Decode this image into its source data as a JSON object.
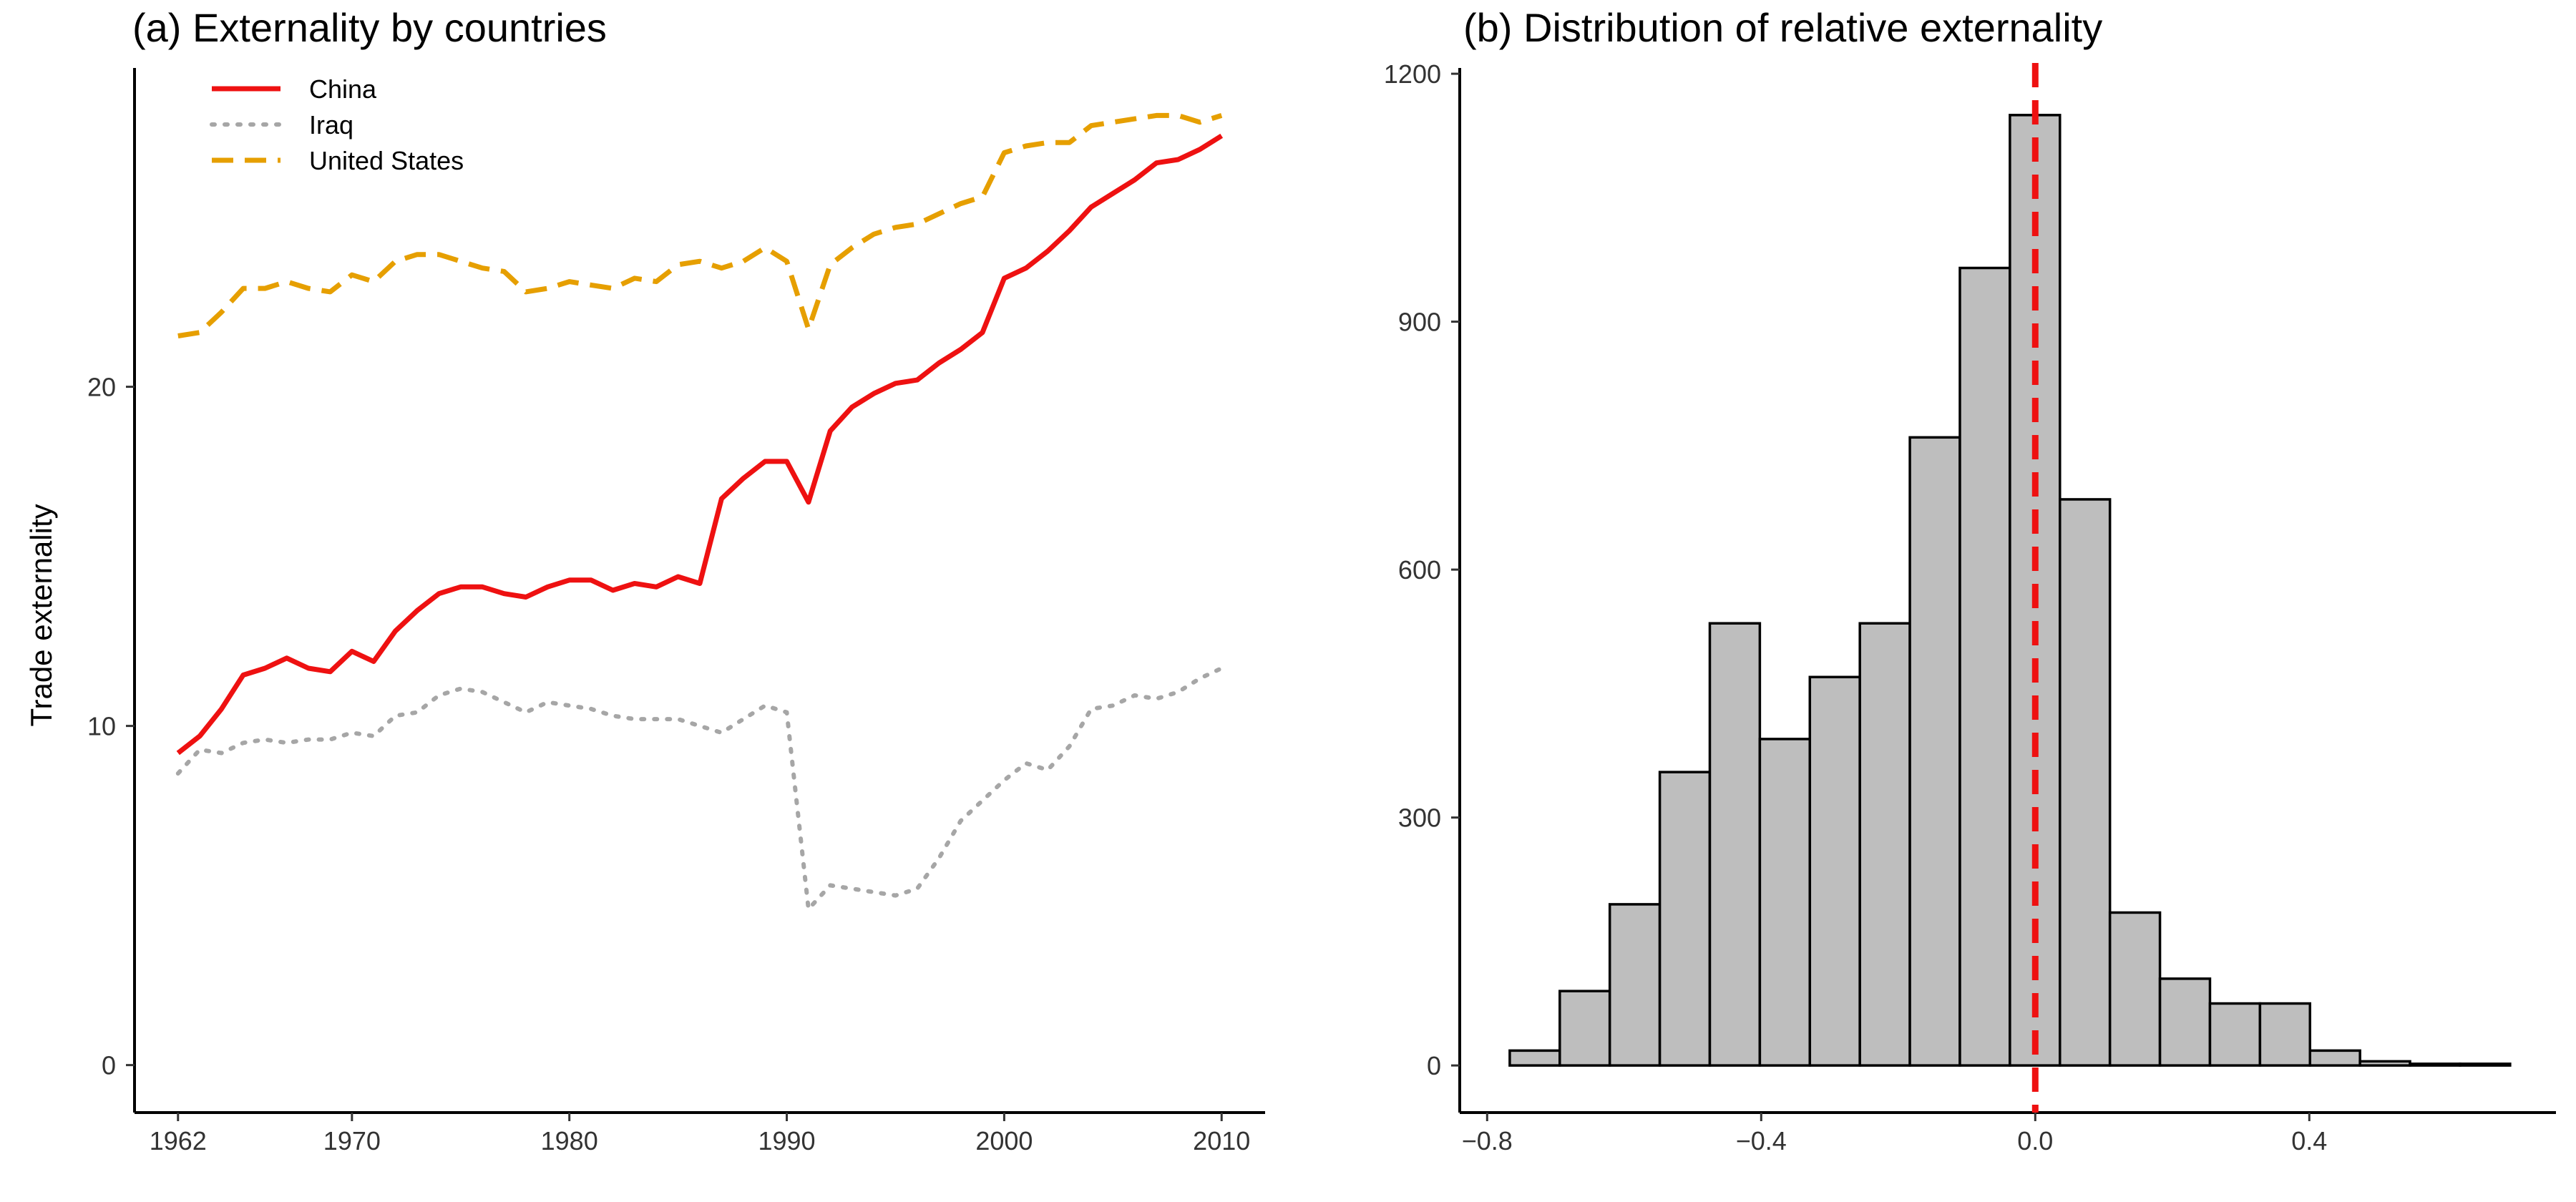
{
  "chart_data": [
    {
      "type": "line",
      "title": "(a) Externality by countries",
      "xlabel": "",
      "ylabel": "Trade externality",
      "xlim": [
        1960,
        2012
      ],
      "ylim": [
        -1.4,
        29.4
      ],
      "x_ticks": [
        1962,
        1970,
        1980,
        1990,
        2000,
        2010
      ],
      "y_ticks": [
        0,
        10,
        20
      ],
      "legend_position": "top-left",
      "series": [
        {
          "name": "China",
          "color": "#ee1111",
          "dash": "solid",
          "x": [
            1962,
            1963,
            1964,
            1965,
            1966,
            1967,
            1968,
            1969,
            1970,
            1971,
            1972,
            1973,
            1974,
            1975,
            1976,
            1977,
            1978,
            1979,
            1980,
            1981,
            1982,
            1983,
            1984,
            1985,
            1986,
            1987,
            1988,
            1989,
            1990,
            1991,
            1992,
            1993,
            1994,
            1995,
            1996,
            1997,
            1998,
            1999,
            2000,
            2001,
            2002,
            2003,
            2004,
            2005,
            2006,
            2007,
            2008,
            2009,
            2010
          ],
          "values": [
            9.2,
            9.7,
            10.5,
            11.5,
            11.7,
            12.0,
            11.7,
            11.6,
            12.2,
            11.9,
            12.8,
            13.4,
            13.9,
            14.1,
            14.1,
            13.9,
            13.8,
            14.1,
            14.3,
            14.3,
            14.0,
            14.2,
            14.1,
            14.4,
            14.2,
            16.7,
            17.3,
            17.8,
            17.8,
            16.6,
            18.7,
            19.4,
            19.8,
            20.1,
            20.2,
            20.7,
            21.1,
            21.6,
            23.2,
            23.5,
            24.0,
            24.6,
            25.3,
            25.7,
            26.1,
            26.6,
            26.7,
            27.0,
            27.4
          ]
        },
        {
          "name": "Iraq",
          "color": "#a6a6a6",
          "dash": "dotted",
          "x": [
            1962,
            1963,
            1964,
            1965,
            1966,
            1967,
            1968,
            1969,
            1970,
            1971,
            1972,
            1973,
            1974,
            1975,
            1976,
            1977,
            1978,
            1979,
            1980,
            1981,
            1982,
            1983,
            1984,
            1985,
            1986,
            1987,
            1988,
            1989,
            1990,
            1991,
            1992,
            1993,
            1994,
            1995,
            1996,
            1997,
            1998,
            1999,
            2000,
            2001,
            2002,
            2003,
            2004,
            2005,
            2006,
            2007,
            2008,
            2009,
            2010
          ],
          "values": [
            8.6,
            9.3,
            9.2,
            9.5,
            9.6,
            9.5,
            9.6,
            9.6,
            9.8,
            9.7,
            10.3,
            10.4,
            10.9,
            11.1,
            11.0,
            10.7,
            10.4,
            10.7,
            10.6,
            10.5,
            10.3,
            10.2,
            10.2,
            10.2,
            10.0,
            9.8,
            10.2,
            10.6,
            10.4,
            4.6,
            5.3,
            5.2,
            5.1,
            5.0,
            5.2,
            6.1,
            7.2,
            7.8,
            8.4,
            8.9,
            8.7,
            9.4,
            10.5,
            10.6,
            10.9,
            10.8,
            11.0,
            11.4,
            11.7
          ]
        },
        {
          "name": "United States",
          "color": "#e69f00",
          "dash": "dashed",
          "x": [
            1962,
            1963,
            1964,
            1965,
            1966,
            1967,
            1968,
            1969,
            1970,
            1971,
            1972,
            1973,
            1974,
            1975,
            1976,
            1977,
            1978,
            1979,
            1980,
            1981,
            1982,
            1983,
            1984,
            1985,
            1986,
            1987,
            1988,
            1989,
            1990,
            1991,
            1992,
            1993,
            1994,
            1995,
            1996,
            1997,
            1998,
            1999,
            2000,
            2001,
            2002,
            2003,
            2004,
            2005,
            2006,
            2007,
            2008,
            2009,
            2010
          ],
          "values": [
            21.5,
            21.6,
            22.2,
            22.9,
            22.9,
            23.1,
            22.9,
            22.8,
            23.3,
            23.1,
            23.7,
            23.9,
            23.9,
            23.7,
            23.5,
            23.4,
            22.8,
            22.9,
            23.1,
            23.0,
            22.9,
            23.2,
            23.1,
            23.6,
            23.7,
            23.5,
            23.7,
            24.1,
            23.7,
            21.7,
            23.6,
            24.1,
            24.5,
            24.7,
            24.8,
            25.1,
            25.4,
            25.6,
            26.9,
            27.1,
            27.2,
            27.2,
            27.7,
            27.8,
            27.9,
            28.0,
            28.0,
            27.8,
            28.0
          ]
        }
      ]
    },
    {
      "type": "bar",
      "title": "(b) Distribution of relative externality",
      "xlabel": "",
      "ylabel": "",
      "xlim": [
        -0.84,
        0.76
      ],
      "ylim": [
        -57,
        1207
      ],
      "x_ticks": [
        -0.8,
        -0.4,
        0.0,
        0.4
      ],
      "x_tick_labels": [
        "−0.8",
        "−0.4",
        "0.0",
        "0.4"
      ],
      "y_ticks": [
        0,
        300,
        600,
        900,
        1200
      ],
      "bin_width": 0.073,
      "bin_starts": [
        -0.767,
        -0.694,
        -0.621,
        -0.548,
        -0.475,
        -0.402,
        -0.329,
        -0.256,
        -0.183,
        -0.11,
        -0.037,
        0.036,
        0.109,
        0.182,
        0.255,
        0.328,
        0.401,
        0.474,
        0.547,
        0.62
      ],
      "values": [
        18,
        90,
        195,
        355,
        535,
        395,
        470,
        535,
        760,
        965,
        1150,
        685,
        185,
        105,
        75,
        75,
        18,
        5,
        2,
        2
      ],
      "bar_color": "#bebebe",
      "bar_edge_color": "#000000",
      "vline": {
        "x": 0.0,
        "color": "#ee1111",
        "dash": "dashed"
      }
    }
  ]
}
